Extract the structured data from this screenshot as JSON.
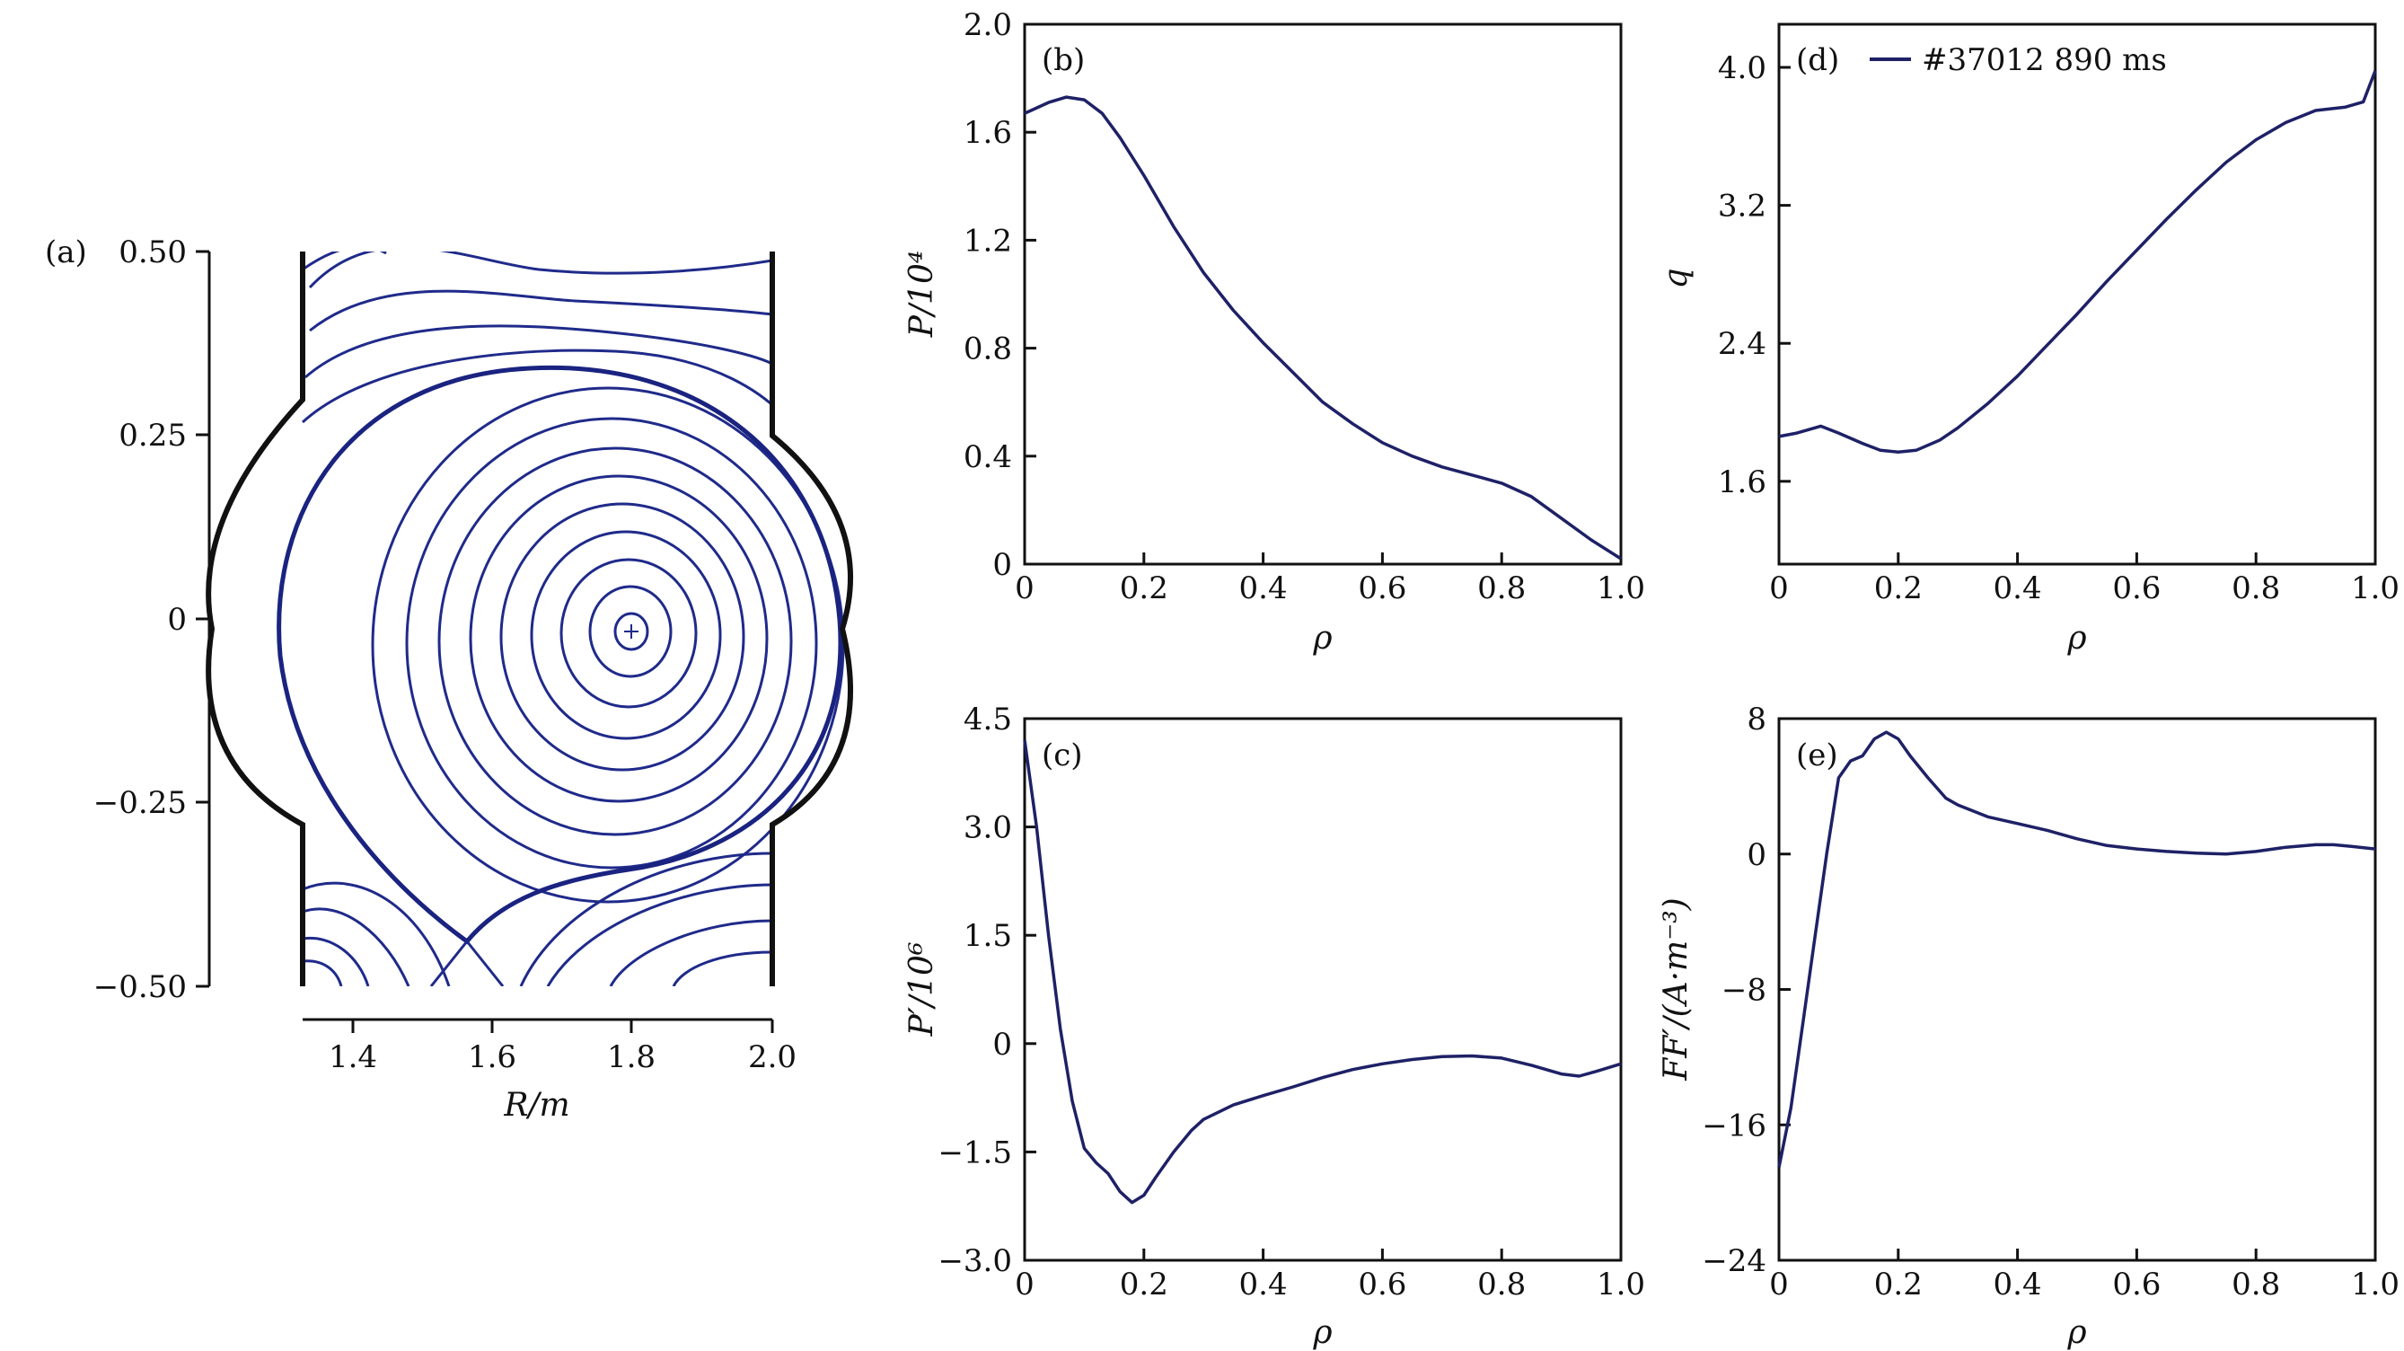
{
  "colors": {
    "curve": "#1e2166",
    "flux": "#1f2a8a",
    "wall": "#111111",
    "frame": "#111111"
  },
  "chart_data": [
    {
      "id": "a",
      "type": "contour",
      "panel_label": "(a)",
      "xlabel": "R/m",
      "ylabel": "",
      "xlim": [
        1.33,
        2.0
      ],
      "ylim": [
        -0.5,
        0.5
      ],
      "xticks": [
        "1.4",
        "1.6",
        "1.8",
        "2.0"
      ],
      "yticks": [
        "0.50",
        "0.25",
        "0",
        "−0.25",
        "−0.50"
      ],
      "magnetic_axis": {
        "R": 1.8,
        "Z": -0.02,
        "marker": "+"
      }
    },
    {
      "id": "b",
      "type": "line",
      "panel_label": "(b)",
      "xlabel": "ρ",
      "ylabel": "P/10⁴",
      "xlim": [
        0,
        1.0
      ],
      "ylim": [
        0,
        2.0
      ],
      "xticks": [
        "0",
        "0.2",
        "0.4",
        "0.6",
        "0.8",
        "1.0"
      ],
      "yticks": [
        "0",
        "0.4",
        "0.8",
        "1.2",
        "1.6",
        "2.0"
      ],
      "x": [
        0,
        0.04,
        0.07,
        0.1,
        0.13,
        0.16,
        0.2,
        0.25,
        0.3,
        0.35,
        0.4,
        0.45,
        0.5,
        0.55,
        0.6,
        0.65,
        0.7,
        0.75,
        0.8,
        0.85,
        0.9,
        0.95,
        1.0
      ],
      "y": [
        1.67,
        1.71,
        1.73,
        1.72,
        1.67,
        1.58,
        1.44,
        1.25,
        1.08,
        0.94,
        0.82,
        0.71,
        0.6,
        0.52,
        0.45,
        0.4,
        0.36,
        0.33,
        0.3,
        0.25,
        0.17,
        0.09,
        0.02
      ]
    },
    {
      "id": "c",
      "type": "line",
      "panel_label": "(c)",
      "xlabel": "ρ",
      "ylabel": "P′/10⁶",
      "xlim": [
        0,
        1.0
      ],
      "ylim": [
        -3.0,
        4.5
      ],
      "xticks": [
        "0",
        "0.2",
        "0.4",
        "0.6",
        "0.8",
        "1.0"
      ],
      "yticks": [
        "−3.0",
        "−1.5",
        "0",
        "1.5",
        "3.0",
        "4.5"
      ],
      "x": [
        0,
        0.02,
        0.04,
        0.06,
        0.08,
        0.1,
        0.12,
        0.14,
        0.16,
        0.18,
        0.2,
        0.22,
        0.25,
        0.28,
        0.3,
        0.35,
        0.4,
        0.45,
        0.5,
        0.55,
        0.6,
        0.65,
        0.7,
        0.75,
        0.8,
        0.85,
        0.9,
        0.93,
        0.96,
        1.0
      ],
      "y": [
        4.2,
        3.0,
        1.5,
        0.2,
        -0.8,
        -1.45,
        -1.65,
        -1.8,
        -2.05,
        -2.2,
        -2.1,
        -1.85,
        -1.5,
        -1.2,
        -1.05,
        -0.85,
        -0.72,
        -0.6,
        -0.47,
        -0.36,
        -0.28,
        -0.22,
        -0.18,
        -0.17,
        -0.2,
        -0.3,
        -0.42,
        -0.45,
        -0.38,
        -0.28
      ]
    },
    {
      "id": "d",
      "type": "line",
      "panel_label": "(d)",
      "xlabel": "ρ",
      "ylabel": "q",
      "xlim": [
        0,
        1.0
      ],
      "ylim": [
        1.12,
        4.25
      ],
      "xticks": [
        "0",
        "0.2",
        "0.4",
        "0.6",
        "0.8",
        "1.0"
      ],
      "yticks": [
        "1.6",
        "2.4",
        "3.2",
        "4.0"
      ],
      "legend": {
        "label": "#37012 890 ms",
        "loc": "top-left"
      },
      "x": [
        0,
        0.03,
        0.07,
        0.1,
        0.14,
        0.17,
        0.2,
        0.23,
        0.27,
        0.3,
        0.35,
        0.4,
        0.45,
        0.5,
        0.55,
        0.6,
        0.65,
        0.7,
        0.75,
        0.8,
        0.85,
        0.9,
        0.95,
        0.98,
        1.0
      ],
      "y": [
        1.86,
        1.88,
        1.92,
        1.88,
        1.82,
        1.78,
        1.77,
        1.78,
        1.84,
        1.91,
        2.05,
        2.21,
        2.39,
        2.57,
        2.76,
        2.94,
        3.12,
        3.29,
        3.45,
        3.58,
        3.68,
        3.75,
        3.77,
        3.8,
        3.98
      ]
    },
    {
      "id": "e",
      "type": "line",
      "panel_label": "(e)",
      "xlabel": "ρ",
      "ylabel": "FF′/(A·m⁻³)",
      "xlim": [
        0,
        1.0
      ],
      "ylim": [
        -24,
        8
      ],
      "xticks": [
        "0",
        "0.2",
        "0.4",
        "0.6",
        "0.8",
        "1.0"
      ],
      "yticks": [
        "−24",
        "−16",
        "−8",
        "0",
        "8"
      ],
      "x": [
        0,
        0.02,
        0.04,
        0.06,
        0.08,
        0.1,
        0.12,
        0.14,
        0.16,
        0.18,
        0.2,
        0.22,
        0.25,
        0.28,
        0.3,
        0.35,
        0.4,
        0.45,
        0.5,
        0.55,
        0.6,
        0.65,
        0.7,
        0.75,
        0.8,
        0.85,
        0.9,
        0.93,
        0.96,
        1.0
      ],
      "y": [
        -18.5,
        -15,
        -10,
        -5,
        0,
        4.5,
        5.5,
        5.8,
        6.8,
        7.2,
        6.8,
        5.8,
        4.5,
        3.3,
        2.9,
        2.2,
        1.8,
        1.4,
        0.9,
        0.5,
        0.3,
        0.15,
        0.05,
        0.0,
        0.15,
        0.4,
        0.55,
        0.55,
        0.45,
        0.3
      ]
    }
  ]
}
